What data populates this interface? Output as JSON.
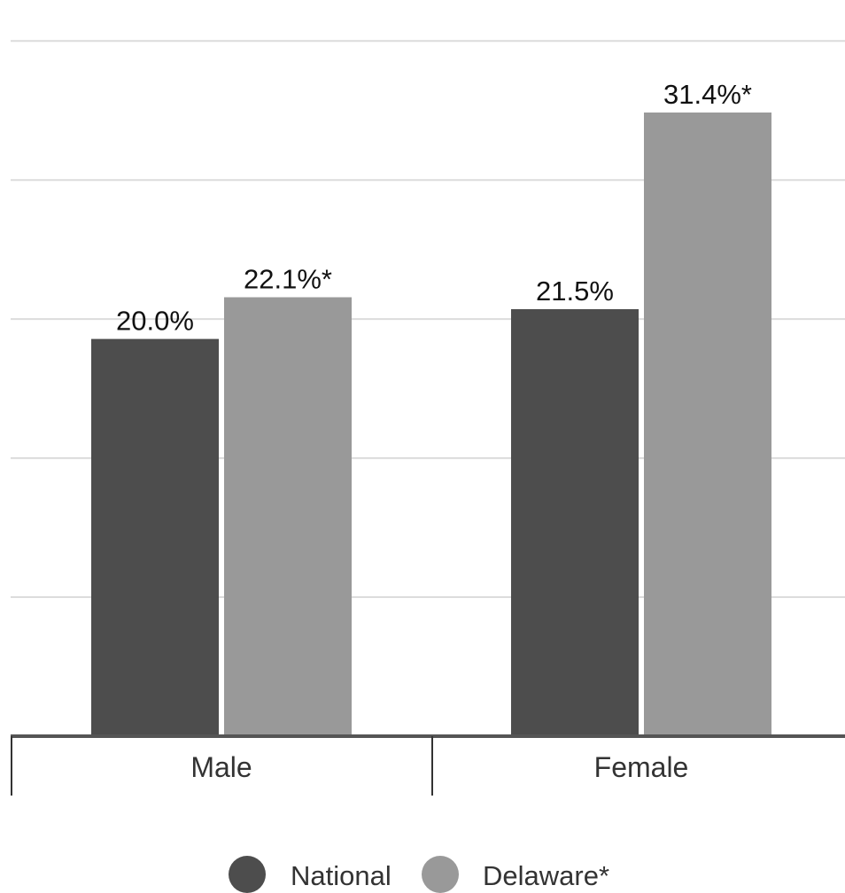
{
  "chart_data": {
    "type": "bar",
    "categories": [
      "Male",
      "Female"
    ],
    "series": [
      {
        "name": "National",
        "values": [
          20.0,
          21.5
        ],
        "labels": [
          "20.0%",
          "21.5%"
        ],
        "color": "#4d4d4d"
      },
      {
        "name": "Delaware*",
        "values": [
          22.1,
          31.4
        ],
        "labels": [
          "22.1%*",
          "31.4%*"
        ],
        "color": "#999999"
      }
    ],
    "ylim": [
      0,
      35
    ],
    "grid": true,
    "legend": "bottom-center",
    "title": "",
    "xlabel": "",
    "ylabel": ""
  }
}
